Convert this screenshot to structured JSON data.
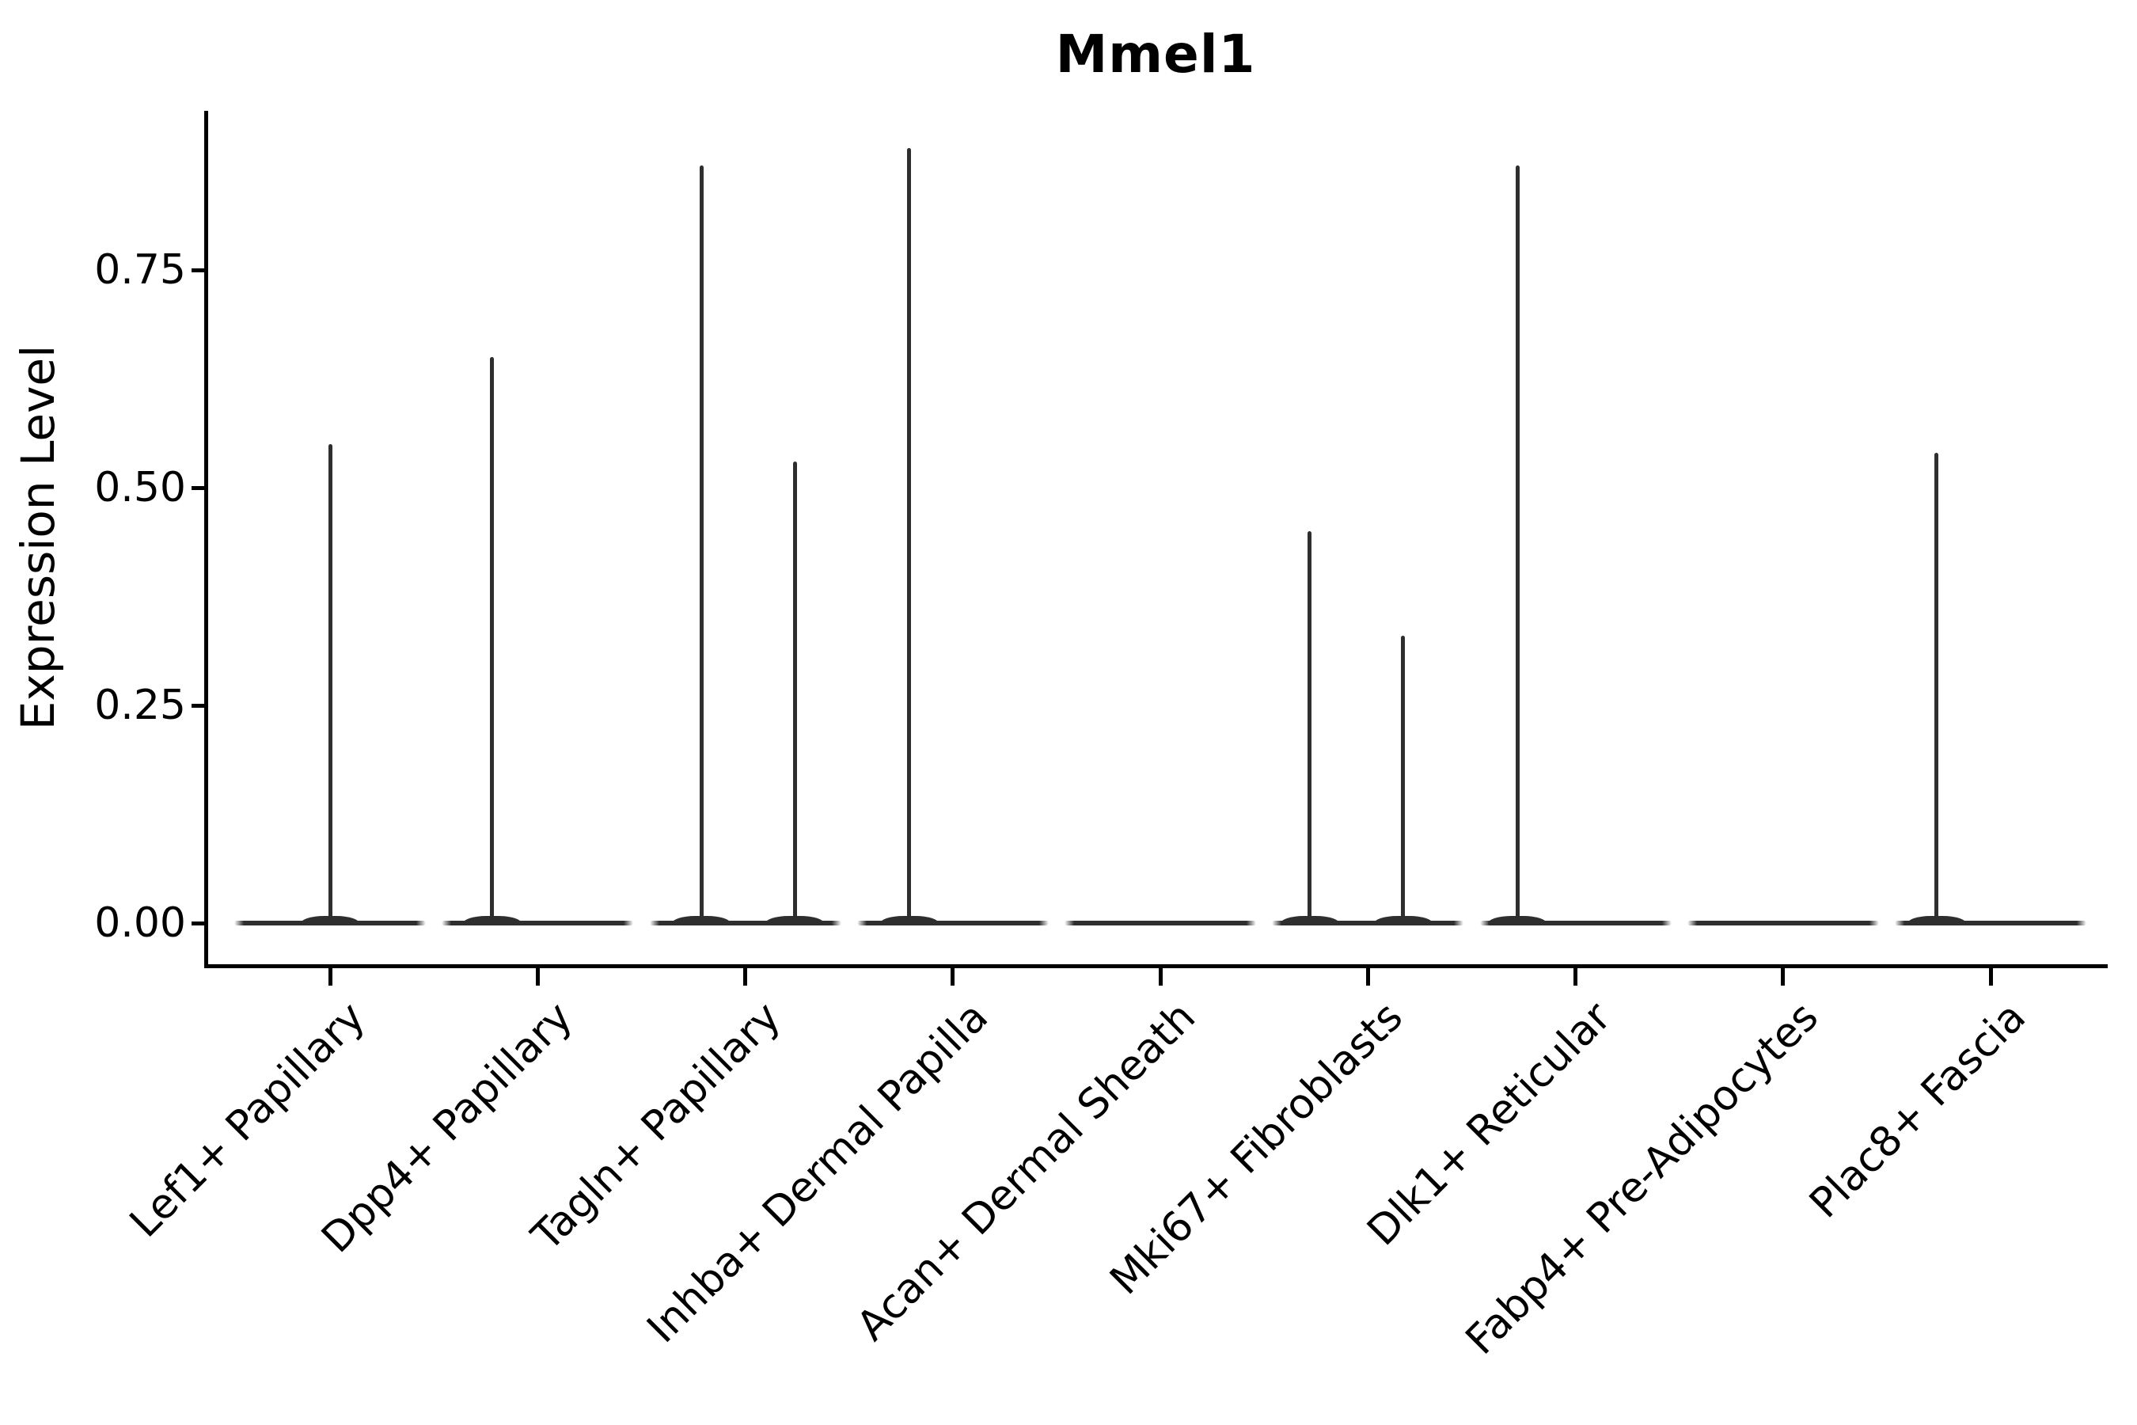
{
  "chart_data": {
    "type": "violin",
    "title": "Mmel1",
    "ylabel": "Expression Level",
    "xlabel": "",
    "ylim": [
      0,
      0.93
    ],
    "grid": false,
    "legend": false,
    "line_color": "#2e2e2e",
    "axis_color": "#000000",
    "background_color": "#ffffff",
    "yticks": [
      {
        "value": 0.0,
        "label": "0.00"
      },
      {
        "value": 0.25,
        "label": "0.25"
      },
      {
        "value": 0.5,
        "label": "0.50"
      },
      {
        "value": 0.75,
        "label": "0.75"
      }
    ],
    "categories": [
      "Lef1+ Papillary",
      "Dpp4+ Papillary",
      "Tagln+ Papillary",
      "Inhba+ Dermal Papilla",
      "Acan+ Dermal Sheath",
      "Mki67+ Fibroblasts",
      "Dlk1+ Reticular",
      "Fabp4+ Pre-Adipocytes",
      "Plac8+ Fascia"
    ],
    "violins": [
      {
        "category": "Lef1+ Papillary",
        "max_expression": 0.55,
        "spikes": [
          {
            "offset_frac": 0.0,
            "value": 0.55
          }
        ]
      },
      {
        "category": "Dpp4+ Papillary",
        "max_expression": 0.65,
        "spikes": [
          {
            "offset_frac": -0.22,
            "value": 0.65
          }
        ]
      },
      {
        "category": "Tagln+ Papillary",
        "max_expression": 0.87,
        "spikes": [
          {
            "offset_frac": -0.21,
            "value": 0.87
          },
          {
            "offset_frac": 0.24,
            "value": 0.53
          }
        ]
      },
      {
        "category": "Inhba+ Dermal Papilla",
        "max_expression": 0.89,
        "spikes": [
          {
            "offset_frac": -0.21,
            "value": 0.89
          }
        ]
      },
      {
        "category": "Acan+ Dermal Sheath",
        "max_expression": 0.0,
        "spikes": []
      },
      {
        "category": "Mki67+ Fibroblasts",
        "max_expression": 0.45,
        "spikes": [
          {
            "offset_frac": -0.28,
            "value": 0.45
          },
          {
            "offset_frac": 0.17,
            "value": 0.33
          }
        ]
      },
      {
        "category": "Dlk1+ Reticular",
        "max_expression": 0.87,
        "spikes": [
          {
            "offset_frac": -0.28,
            "value": 0.87
          }
        ]
      },
      {
        "category": "Fabp4+ Pre-Adipocytes",
        "max_expression": 0.0,
        "spikes": []
      },
      {
        "category": "Plac8+ Fascia",
        "max_expression": 0.54,
        "spikes": [
          {
            "offset_frac": -0.26,
            "value": 0.54
          }
        ]
      }
    ]
  }
}
